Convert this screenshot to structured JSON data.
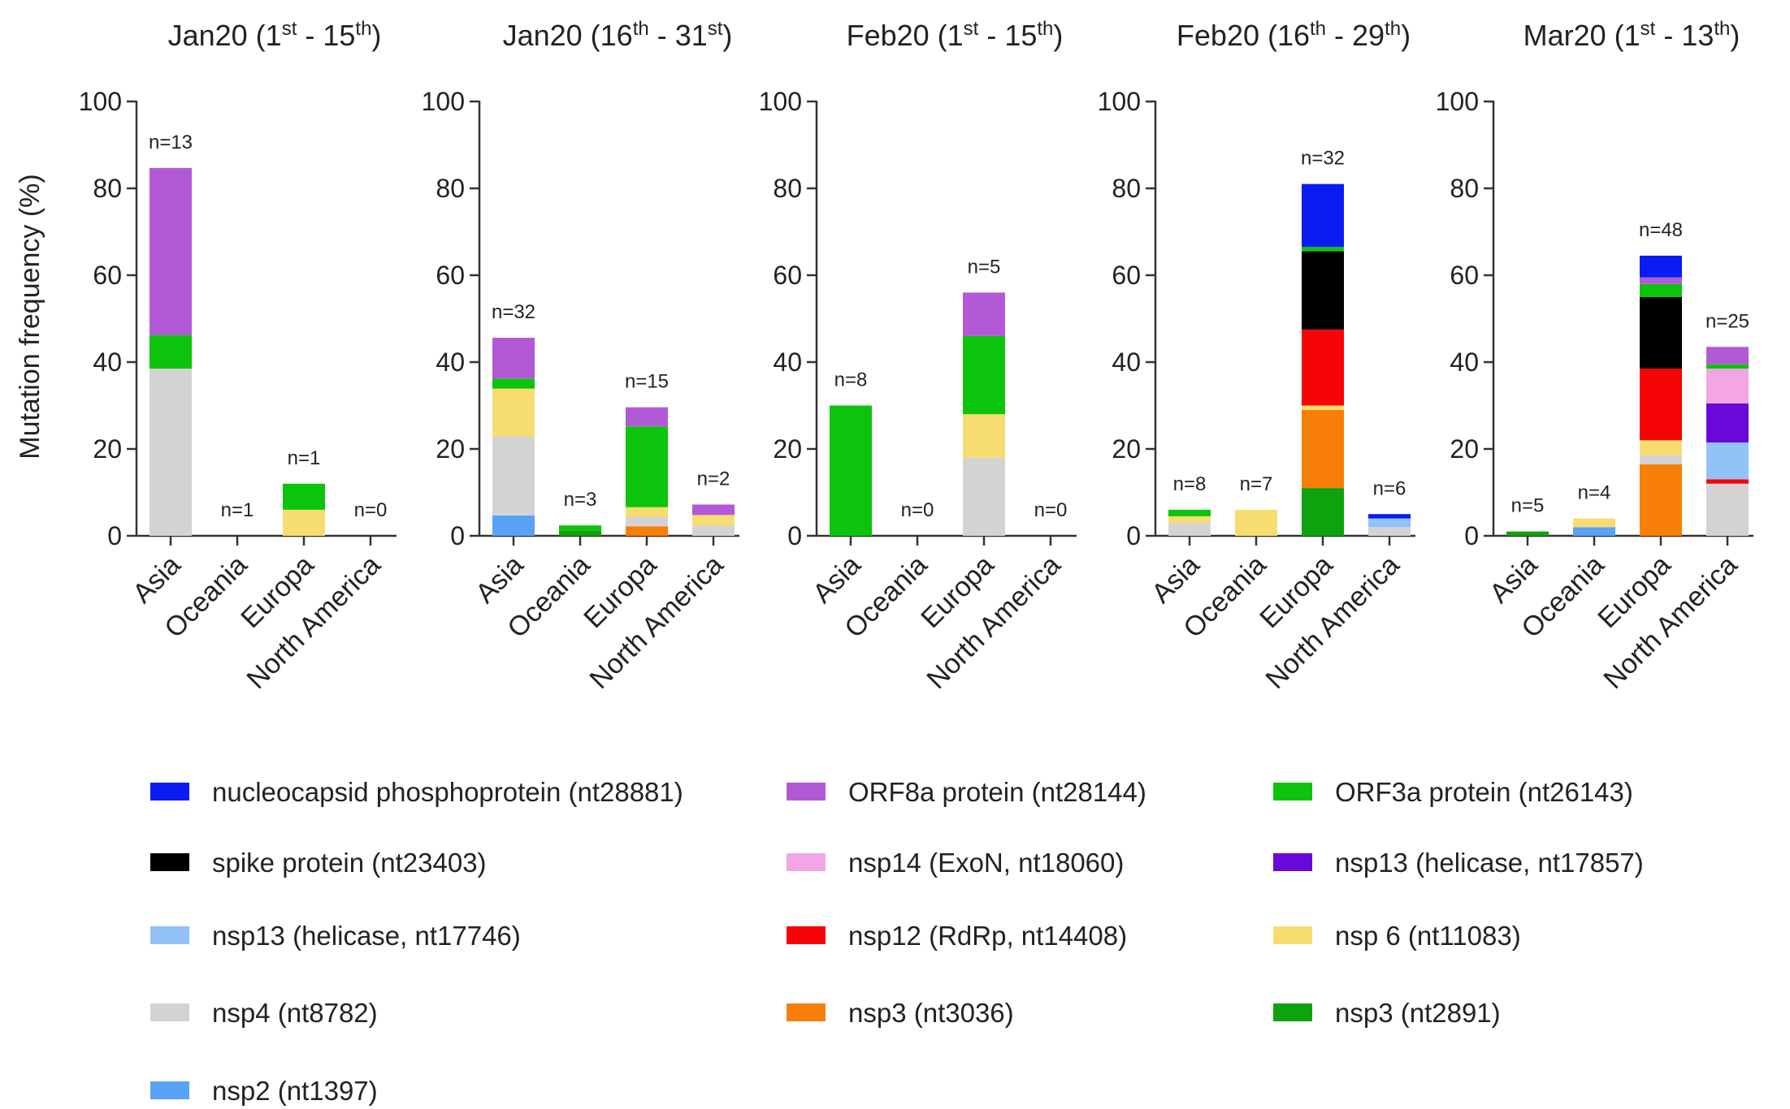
{
  "chart_data": {
    "type": "bar",
    "stacked": true,
    "ylabel": "Mutation frequency (%)",
    "ylim": [
      0,
      100
    ],
    "yticks": [
      0,
      20,
      40,
      60,
      80,
      100
    ],
    "grid": false,
    "legend_position": "bottom",
    "categories": [
      "Asia",
      "Oceania",
      "Europa",
      "North America"
    ],
    "series": [
      {
        "name": "nucleocapsid phosphoprotein (nt28881)",
        "color": "#0a1cf2"
      },
      {
        "name": "ORF8a protein (nt28144)",
        "color": "#b25ad6"
      },
      {
        "name": "ORF3a protein (nt26143)",
        "color": "#0cc40c"
      },
      {
        "name": "spike protein (nt23403)",
        "color": "#000000"
      },
      {
        "name": "nsp14 (ExoN, nt18060)",
        "color": "#f2a6e3"
      },
      {
        "name": "nsp13 (helicase, nt17857)",
        "color": "#6a08d9"
      },
      {
        "name": "nsp13 (helicase, nt17746)",
        "color": "#92c2f7"
      },
      {
        "name": "nsp12 (RdRp, nt14408)",
        "color": "#f50505"
      },
      {
        "name": "nsp 6 (nt11083)",
        "color": "#f7dc6f"
      },
      {
        "name": "nsp4 (nt8782)",
        "color": "#d3d3d3"
      },
      {
        "name": "nsp3 (nt3036)",
        "color": "#f77f07"
      },
      {
        "name": "nsp3 (nt2891)",
        "color": "#0ea30e"
      },
      {
        "name": "nsp2 (nt1397)",
        "color": "#5aa2f5"
      }
    ],
    "panels": [
      {
        "title_main": "Jan20 (1",
        "title_sup1": "st",
        "title_mid": " - 15",
        "title_sup2": "th",
        "title_end": ")",
        "counts": [
          "n=13",
          "n=1",
          "n=1",
          "n=0"
        ],
        "bars": [
          [
            {
              "s": "nsp4 (nt8782)",
              "v": 38.5
            },
            {
              "s": "ORF3a protein (nt26143)",
              "v": 7.7
            },
            {
              "s": "ORF8a protein (nt28144)",
              "v": 38.5
            }
          ],
          [],
          [
            {
              "s": "nsp 6 (nt11083)",
              "v": 6
            },
            {
              "s": "ORF3a protein (nt26143)",
              "v": 6
            }
          ],
          []
        ]
      },
      {
        "title_main": "Jan20 (16",
        "title_sup1": "th",
        "title_mid": " - 31",
        "title_sup2": "st",
        "title_end": ")",
        "counts": [
          "n=32",
          "n=3",
          "n=15",
          "n=2"
        ],
        "bars": [
          [
            {
              "s": "nsp2 (nt1397)",
              "v": 4.7
            },
            {
              "s": "nsp4 (nt8782)",
              "v": 18.2
            },
            {
              "s": "nsp 6 (nt11083)",
              "v": 11
            },
            {
              "s": "ORF3a protein (nt26143)",
              "v": 2.3
            },
            {
              "s": "ORF8a protein (nt28144)",
              "v": 9.4
            }
          ],
          [
            {
              "s": "nsp3 (nt2891)",
              "v": 1.2
            },
            {
              "s": "ORF3a protein (nt26143)",
              "v": 1.2
            }
          ],
          [
            {
              "s": "nsp3 (nt3036)",
              "v": 2.2
            },
            {
              "s": "nsp4 (nt8782)",
              "v": 2.2
            },
            {
              "s": "nsp 6 (nt11083)",
              "v": 2.2
            },
            {
              "s": "ORF3a protein (nt26143)",
              "v": 18.6
            },
            {
              "s": "ORF8a protein (nt28144)",
              "v": 4.4
            }
          ],
          [
            {
              "s": "nsp4 (nt8782)",
              "v": 2.4
            },
            {
              "s": "nsp 6 (nt11083)",
              "v": 2.4
            },
            {
              "s": "ORF8a protein (nt28144)",
              "v": 2.4
            }
          ]
        ]
      },
      {
        "title_main": "Feb20 (1",
        "title_sup1": "st",
        "title_mid": " - 15",
        "title_sup2": "th",
        "title_end": ")",
        "counts": [
          "n=8",
          "n=0",
          "n=5",
          "n=0"
        ],
        "bars": [
          [
            {
              "s": "ORF3a protein (nt26143)",
              "v": 30
            }
          ],
          [],
          [
            {
              "s": "nsp4 (nt8782)",
              "v": 18
            },
            {
              "s": "nsp 6 (nt11083)",
              "v": 10
            },
            {
              "s": "ORF3a protein (nt26143)",
              "v": 18
            },
            {
              "s": "ORF8a protein (nt28144)",
              "v": 10
            }
          ],
          []
        ]
      },
      {
        "title_main": "Feb20 (16",
        "title_sup1": "th",
        "title_mid": " - 29",
        "title_sup2": "th",
        "title_end": ")",
        "counts": [
          "n=8",
          "n=7",
          "n=32",
          "n=6"
        ],
        "bars": [
          [
            {
              "s": "nsp4 (nt8782)",
              "v": 3
            },
            {
              "s": "nsp 6 (nt11083)",
              "v": 1.5
            },
            {
              "s": "ORF3a protein (nt26143)",
              "v": 1.5
            }
          ],
          [
            {
              "s": "nsp 6 (nt11083)",
              "v": 6
            }
          ],
          [
            {
              "s": "nsp3 (nt2891)",
              "v": 11
            },
            {
              "s": "nsp3 (nt3036)",
              "v": 18
            },
            {
              "s": "nsp 6 (nt11083)",
              "v": 1
            },
            {
              "s": "nsp12 (RdRp, nt14408)",
              "v": 17.5
            },
            {
              "s": "spike protein (nt23403)",
              "v": 18
            },
            {
              "s": "ORF3a protein (nt26143)",
              "v": 1
            },
            {
              "s": "nucleocapsid phosphoprotein (nt28881)",
              "v": 14.5
            }
          ],
          [
            {
              "s": "nsp4 (nt8782)",
              "v": 2
            },
            {
              "s": "nsp13 (helicase, nt17746)",
              "v": 2
            },
            {
              "s": "nucleocapsid phosphoprotein (nt28881)",
              "v": 1
            }
          ]
        ]
      },
      {
        "title_main": "Mar20 (1",
        "title_sup1": "st",
        "title_mid": " - 13",
        "title_sup2": "th",
        "title_end": ")",
        "counts": [
          "n=5",
          "n=4",
          "n=48",
          "n=25"
        ],
        "bars": [
          [
            {
              "s": "nsp3 (nt2891)",
              "v": 1
            }
          ],
          [
            {
              "s": "nsp2 (nt1397)",
              "v": 2
            },
            {
              "s": "nsp 6 (nt11083)",
              "v": 2
            }
          ],
          [
            {
              "s": "nsp3 (nt3036)",
              "v": 16.5
            },
            {
              "s": "nsp4 (nt8782)",
              "v": 2
            },
            {
              "s": "nsp 6 (nt11083)",
              "v": 3.5
            },
            {
              "s": "nsp12 (RdRp, nt14408)",
              "v": 16.5
            },
            {
              "s": "spike protein (nt23403)",
              "v": 16.5
            },
            {
              "s": "ORF3a protein (nt26143)",
              "v": 3
            },
            {
              "s": "ORF8a protein (nt28144)",
              "v": 1.5
            },
            {
              "s": "nucleocapsid phosphoprotein (nt28881)",
              "v": 5
            }
          ],
          [
            {
              "s": "nsp4 (nt8782)",
              "v": 12
            },
            {
              "s": "nsp12 (RdRp, nt14408)",
              "v": 1
            },
            {
              "s": "nsp13 (helicase, nt17746)",
              "v": 8.5
            },
            {
              "s": "nsp13 (helicase, nt17857)",
              "v": 9
            },
            {
              "s": "nsp14 (ExoN, nt18060)",
              "v": 8
            },
            {
              "s": "ORF3a protein (nt26143)",
              "v": 1
            },
            {
              "s": "ORF8a protein (nt28144)",
              "v": 4
            }
          ]
        ]
      }
    ]
  }
}
